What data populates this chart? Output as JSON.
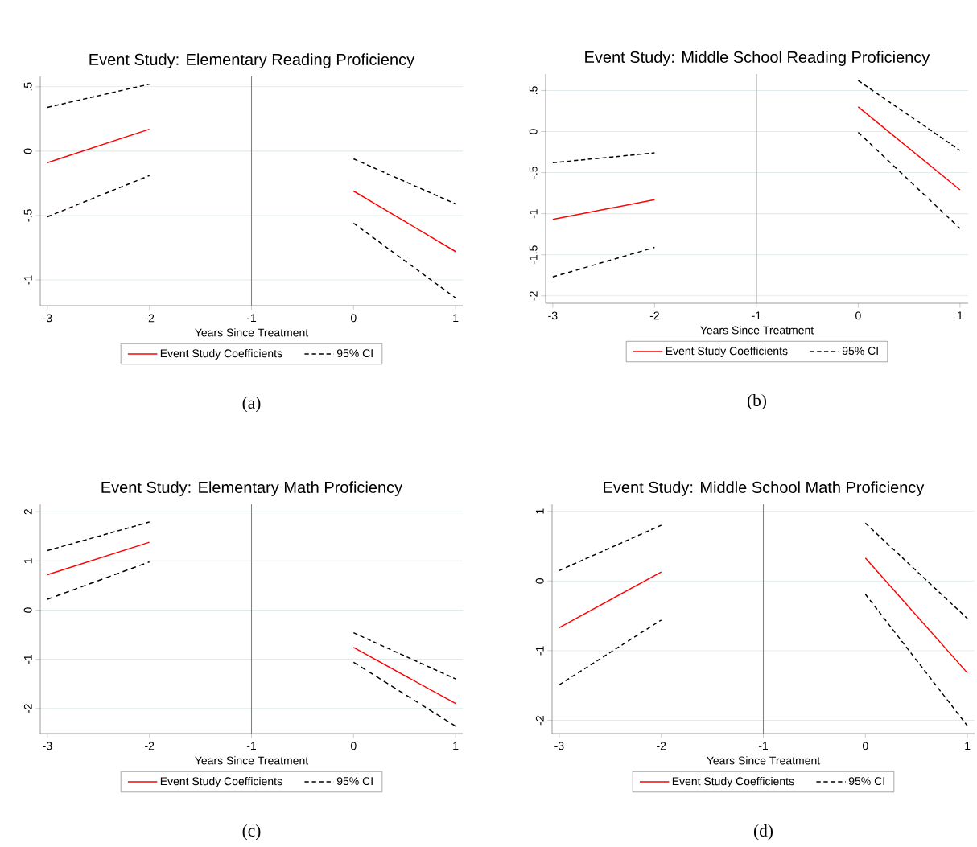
{
  "chart_data": [
    {
      "type": "line",
      "title": "Event Study: Elementary Reading Proficiency",
      "xlabel": "Years Since Treatment",
      "x": [
        -3,
        -2,
        -1,
        0,
        1
      ],
      "xlim": [
        -3.07,
        1.07
      ],
      "xticks": [
        -3,
        -2,
        -1,
        0,
        1
      ],
      "ylim": [
        -1.2,
        0.58
      ],
      "yticks": [
        {
          "value": -1,
          "label": "-1"
        },
        {
          "value": -0.5,
          "label": "-.5"
        },
        {
          "value": 0,
          "label": "0"
        },
        {
          "value": 0.5,
          "label": ".5"
        }
      ],
      "grid": "y",
      "legend": "bottom",
      "ref_lines": [
        {
          "axis": "x",
          "value": -1,
          "color": "#808080"
        }
      ],
      "annotations": [
        "(a)"
      ],
      "series": [
        {
          "name": "Event Study Coefficients",
          "color": "#ff0000",
          "line_style": "solid",
          "values": [
            -0.09,
            0.17,
            null,
            -0.31,
            -0.78
          ]
        },
        {
          "name": "95% CI",
          "color": "#000000",
          "line_style": "dashed",
          "values": [
            0.34,
            0.52,
            null,
            -0.06,
            -0.41
          ]
        },
        {
          "color": "#000000",
          "line_style": "dashed",
          "values": [
            -0.51,
            -0.19,
            null,
            -0.56,
            -1.14
          ]
        }
      ]
    },
    {
      "type": "line",
      "title": "Event Study: Middle School Reading Proficiency",
      "xlabel": "Years Since Treatment",
      "x": [
        -3,
        -2,
        -1,
        0,
        1
      ],
      "xlim": [
        -3.07,
        1.08
      ],
      "xticks": [
        -3,
        -2,
        -1,
        0,
        1
      ],
      "ylim": [
        -2.09,
        0.7
      ],
      "yticks": [
        {
          "value": -2,
          "label": "-2"
        },
        {
          "value": -1.5,
          "label": "-1.5"
        },
        {
          "value": -1,
          "label": "-1"
        },
        {
          "value": -0.5,
          "label": "-.5"
        },
        {
          "value": 0,
          "label": "0"
        },
        {
          "value": 0.5,
          "label": ".5"
        }
      ],
      "grid": "y",
      "legend": "bottom",
      "ref_lines": [
        {
          "axis": "x",
          "value": -1,
          "color": "#808080"
        }
      ],
      "annotations": [
        "(b)"
      ],
      "series": [
        {
          "name": "Event Study Coefficients",
          "color": "#ff0000",
          "line_style": "solid",
          "values": [
            -1.07,
            -0.83,
            null,
            0.3,
            -0.71
          ]
        },
        {
          "name": "95% CI",
          "color": "#000000",
          "line_style": "dashed",
          "values": [
            -0.38,
            -0.26,
            null,
            0.62,
            -0.23
          ]
        },
        {
          "color": "#000000",
          "line_style": "dashed",
          "values": [
            -1.77,
            -1.41,
            null,
            -0.01,
            -1.18
          ]
        }
      ]
    },
    {
      "type": "line",
      "title": "Event Study: Elementary Math Proficiency",
      "xlabel": "Years Since Treatment",
      "x": [
        -3,
        -2,
        -1,
        0,
        1
      ],
      "xlim": [
        -3.07,
        1.07
      ],
      "xticks": [
        -3,
        -2,
        -1,
        0,
        1
      ],
      "ylim": [
        -2.51,
        2.15
      ],
      "yticks": [
        -2,
        -1,
        0,
        1,
        2
      ],
      "grid": "y",
      "legend": "bottom",
      "ref_lines": [
        {
          "axis": "x",
          "value": -1,
          "color": "#808080"
        }
      ],
      "annotations": [
        "(c)"
      ],
      "series": [
        {
          "name": "Event Study Coefficients",
          "color": "#ff0000",
          "line_style": "solid",
          "values": [
            0.72,
            1.38,
            null,
            -0.76,
            -1.9
          ]
        },
        {
          "name": "95% CI",
          "color": "#000000",
          "line_style": "dashed",
          "values": [
            1.21,
            1.79,
            null,
            -0.46,
            -1.4
          ]
        },
        {
          "color": "#000000",
          "line_style": "dashed",
          "values": [
            0.22,
            0.98,
            null,
            -1.06,
            -2.36
          ]
        }
      ]
    },
    {
      "type": "line",
      "title": "Event Study: Middle School Math Proficiency",
      "xlabel": "Years Since Treatment",
      "x": [
        -3,
        -2,
        -1,
        0,
        1
      ],
      "xlim": [
        -3.07,
        1.07
      ],
      "xticks": [
        -3,
        -2,
        -1,
        0,
        1
      ],
      "ylim": [
        -2.19,
        1.1
      ],
      "yticks": [
        -2,
        -1,
        0,
        1
      ],
      "grid": "y",
      "legend": "bottom",
      "ref_lines": [
        {
          "axis": "x",
          "value": -1,
          "color": "#808080"
        }
      ],
      "annotations": [
        "(d)"
      ],
      "series": [
        {
          "name": "Event Study Coefficients",
          "color": "#ff0000",
          "line_style": "solid",
          "values": [
            -0.67,
            0.13,
            null,
            0.33,
            -1.32
          ]
        },
        {
          "name": "95% CI",
          "color": "#000000",
          "line_style": "dashed",
          "values": [
            0.15,
            0.8,
            null,
            0.83,
            -0.54
          ]
        },
        {
          "color": "#000000",
          "line_style": "dashed",
          "values": [
            -1.49,
            -0.56,
            null,
            -0.19,
            -2.08
          ]
        }
      ]
    }
  ]
}
